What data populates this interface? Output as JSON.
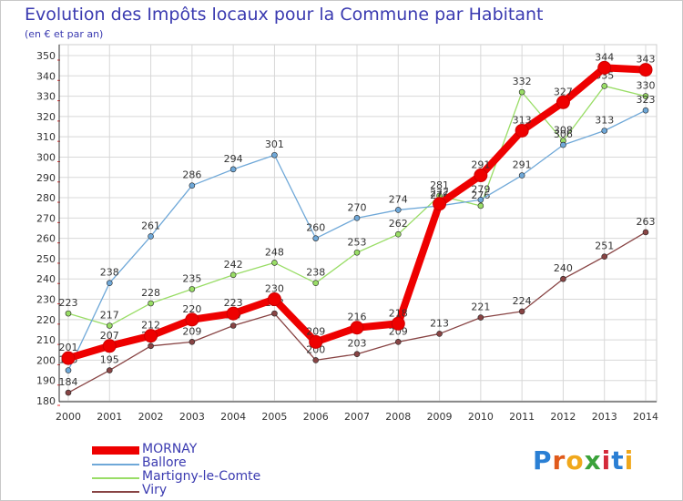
{
  "title": "Evolution des Impôts locaux pour la Commune par Habitant",
  "subtitle": "(en € et par an)",
  "logo": {
    "text": "Proxiti",
    "letter_colors": [
      "#2a7fd4",
      "#e05a1b",
      "#f0a81c",
      "#3aa23a",
      "#d42a3a",
      "#2a7fd4",
      "#f0a81c"
    ]
  },
  "chart_data": {
    "type": "line",
    "title": "Evolution des Impôts locaux pour la Commune par Habitant",
    "subtitle": "(en € et par an)",
    "x": [
      2000,
      2001,
      2002,
      2003,
      2004,
      2005,
      2006,
      2007,
      2008,
      2009,
      2010,
      2011,
      2012,
      2013,
      2014
    ],
    "ylim": [
      180,
      350
    ],
    "yticks": [
      180,
      190,
      200,
      210,
      220,
      230,
      240,
      250,
      260,
      270,
      280,
      290,
      300,
      310,
      320,
      330,
      340,
      350
    ],
    "grid": true,
    "legend_position": "bottom-left",
    "series": [
      {
        "name": "MORNAY",
        "color": "#ee0000",
        "highlight": true,
        "values": [
          201,
          207,
          212,
          220,
          223,
          230,
          209,
          216,
          218,
          277,
          291,
          313,
          327,
          344,
          343
        ]
      },
      {
        "name": "Ballore",
        "color": "#6fa8d8",
        "highlight": false,
        "values": [
          195,
          238,
          261,
          286,
          294,
          301,
          260,
          270,
          274,
          276,
          279,
          291,
          306,
          313,
          323
        ]
      },
      {
        "name": "Martigny-le-Comte",
        "color": "#99dd66",
        "highlight": false,
        "values": [
          223,
          217,
          228,
          235,
          242,
          248,
          238,
          253,
          262,
          281,
          276,
          332,
          308,
          335,
          330
        ]
      },
      {
        "name": "Viry",
        "color": "#884444",
        "highlight": false,
        "values": [
          184,
          195,
          207,
          209,
          217,
          223,
          200,
          203,
          209,
          213,
          221,
          224,
          240,
          251,
          263
        ]
      }
    ]
  }
}
